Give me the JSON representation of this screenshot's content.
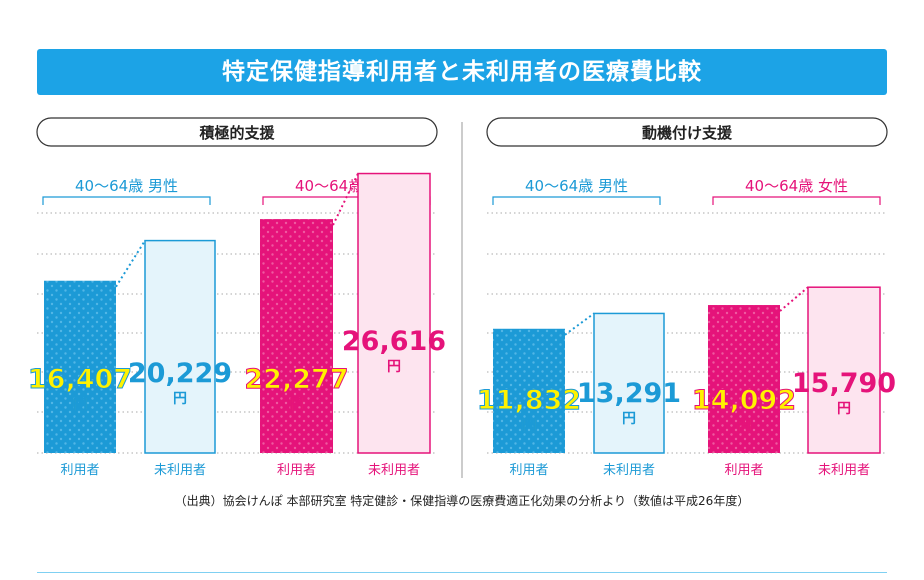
{
  "title": "特定保健指導利用者と未利用者の医療費比較",
  "source_note": "（出典）協会けんぽ 本部研究室 特定健診・保健指導の医療費適正化効果の分析より（数値は平成26年度）",
  "colors": {
    "title_bg": "#1ca3e6",
    "blue": "#1c9ad6",
    "pink": "#e5137a",
    "yellow": "#fff200",
    "light_blue": "#e4f4fb",
    "light_pink": "#fde4ef"
  },
  "chart_data": [
    {
      "type": "bar",
      "panel_title": "積極的支援",
      "ylim": [
        0,
        30000
      ],
      "grid": true,
      "groups": [
        {
          "label": "40～64歳 男性",
          "color": "#1c9ad6",
          "bars": [
            {
              "category": "利用者",
              "value": 16407,
              "value_label": "16,407",
              "unit": "円",
              "filled": true
            },
            {
              "category": "未利用者",
              "value": 20229,
              "value_label": "20,229",
              "unit": "円",
              "filled": false
            }
          ]
        },
        {
          "label": "40～64歳 女性",
          "color": "#e5137a",
          "bars": [
            {
              "category": "利用者",
              "value": 22277,
              "value_label": "22,277",
              "unit": "円",
              "filled": true
            },
            {
              "category": "未利用者",
              "value": 26616,
              "value_label": "26,616",
              "unit": "円",
              "filled": false
            }
          ]
        }
      ]
    },
    {
      "type": "bar",
      "panel_title": "動機付け支援",
      "ylim": [
        0,
        30000
      ],
      "grid": true,
      "groups": [
        {
          "label": "40～64歳 男性",
          "color": "#1c9ad6",
          "bars": [
            {
              "category": "利用者",
              "value": 11832,
              "value_label": "11,832",
              "unit": "円",
              "filled": true
            },
            {
              "category": "未利用者",
              "value": 13291,
              "value_label": "13,291",
              "unit": "円",
              "filled": false
            }
          ]
        },
        {
          "label": "40～64歳 女性",
          "color": "#e5137a",
          "bars": [
            {
              "category": "利用者",
              "value": 14092,
              "value_label": "14,092",
              "unit": "円",
              "filled": true
            },
            {
              "category": "未利用者",
              "value": 15790,
              "value_label": "15,790",
              "unit": "円",
              "filled": false
            }
          ]
        }
      ]
    }
  ]
}
